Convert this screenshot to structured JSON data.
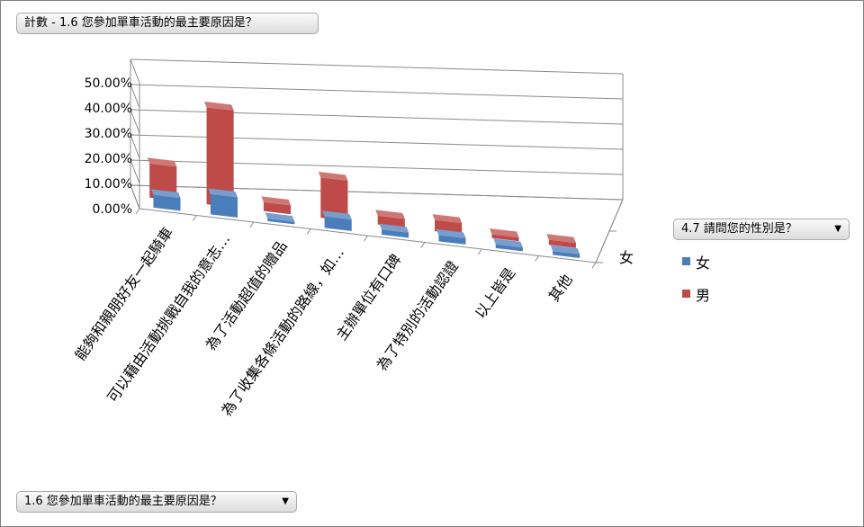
{
  "title_button": {
    "label": "計數 - 1.6 您參加單車活動的最主要原因是？"
  },
  "axis_button": {
    "label": "1.6 您參加單車活動的最主要原因是？",
    "arrow": "▼"
  },
  "legend_button": {
    "label": "4.7 請問您的性別是？",
    "arrow": "▼"
  },
  "depth_label": "女",
  "chart_data": {
    "type": "bar",
    "title": "計數 - 1.6 您參加單車活動的最主要原因是？",
    "categories": [
      "能夠和親朋好友一起騎車",
      "可以藉由活動挑戰自我的意志…",
      "為了活動超值的贈品",
      "為了收集各條活動的路線，如…",
      "主辦單位有口碑",
      "為了特別的活動認證",
      "以上皆是",
      "其他"
    ],
    "series": [
      {
        "name": "女",
        "color": "#4a7ebb",
        "values": [
          5.0,
          8.0,
          1.0,
          4.5,
          2.0,
          2.5,
          1.5,
          1.5
        ]
      },
      {
        "name": "男",
        "color": "#be4b48",
        "values": [
          13.5,
          38.5,
          3.5,
          16.0,
          3.5,
          4.5,
          1.5,
          2.0
        ]
      }
    ],
    "yticks": [
      "50.00%",
      "40.00%",
      "30.00%",
      "20.00%",
      "10.00%",
      "0.00%"
    ],
    "ylim": [
      0,
      50
    ],
    "grid": true,
    "legend": "right"
  }
}
